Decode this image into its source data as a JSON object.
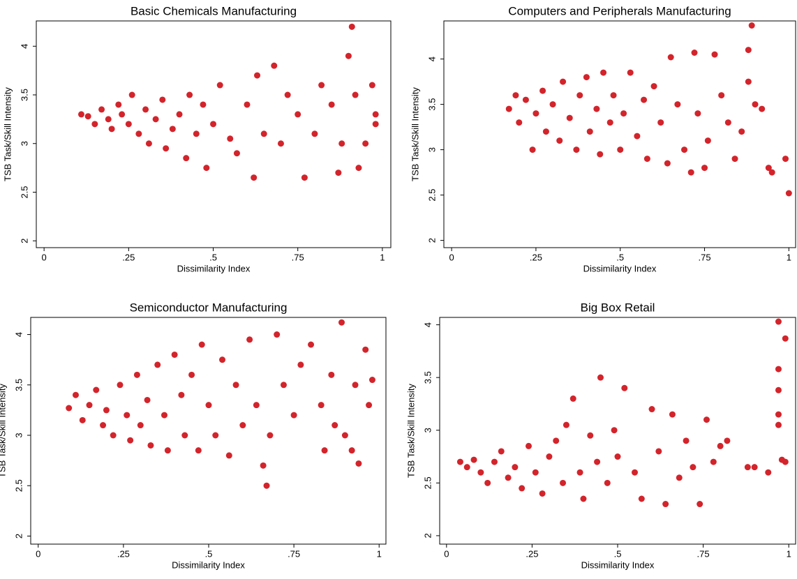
{
  "chart_data": [
    {
      "type": "scatter",
      "title": "Basic Chemicals Manufacturing",
      "x_label": "Dissimilarity Index",
      "y_label": "TSB Task/Skill Intensity",
      "color": "#d3242b",
      "xlim": [
        -0.023,
        1.025
      ],
      "ylim": [
        1.93,
        4.26
      ],
      "xticks": [
        0,
        {
          "value": 0.25,
          "label": ".25"
        },
        {
          "value": 0.5,
          "label": ".5"
        },
        {
          "value": 0.75,
          "label": ".75"
        },
        1
      ],
      "yticks": [
        2,
        2.5,
        3,
        3.5,
        4
      ],
      "x": [
        0.11,
        0.13,
        0.15,
        0.17,
        0.19,
        0.2,
        0.22,
        0.23,
        0.25,
        0.26,
        0.28,
        0.3,
        0.31,
        0.33,
        0.35,
        0.36,
        0.38,
        0.4,
        0.42,
        0.43,
        0.45,
        0.47,
        0.48,
        0.5,
        0.52,
        0.55,
        0.57,
        0.6,
        0.62,
        0.63,
        0.65,
        0.68,
        0.7,
        0.72,
        0.75,
        0.77,
        0.8,
        0.82,
        0.85,
        0.87,
        0.88,
        0.9,
        0.91,
        0.92,
        0.93,
        0.95,
        0.97,
        0.98,
        0.98
      ],
      "values": [
        3.3,
        3.28,
        3.2,
        3.35,
        3.25,
        3.15,
        3.4,
        3.3,
        3.2,
        3.5,
        3.1,
        3.35,
        3.0,
        3.25,
        3.45,
        2.95,
        3.15,
        3.3,
        2.85,
        3.5,
        3.1,
        3.4,
        2.75,
        3.2,
        3.6,
        3.05,
        2.9,
        3.4,
        2.65,
        3.7,
        3.1,
        3.8,
        3.0,
        3.5,
        3.3,
        2.65,
        3.1,
        3.6,
        3.4,
        2.7,
        3.0,
        3.9,
        4.2,
        3.5,
        2.75,
        3.0,
        3.6,
        3.3,
        3.2
      ]
    },
    {
      "type": "scatter",
      "title": "Computers and Peripherals Manufacturing",
      "x_label": "Dissimilarity Index",
      "y_label": "TSB Task/Skill Intensity",
      "color": "#d3242b",
      "xlim": [
        -0.023,
        1.02
      ],
      "ylim": [
        1.92,
        4.42
      ],
      "xticks": [
        0,
        {
          "value": 0.25,
          "label": ".25"
        },
        {
          "value": 0.5,
          "label": ".5"
        },
        {
          "value": 0.75,
          "label": ".75"
        },
        1
      ],
      "yticks": [
        2,
        2.5,
        3,
        3.5,
        4
      ],
      "x": [
        0.17,
        0.19,
        0.2,
        0.22,
        0.24,
        0.25,
        0.27,
        0.28,
        0.3,
        0.32,
        0.33,
        0.35,
        0.37,
        0.38,
        0.4,
        0.41,
        0.43,
        0.44,
        0.45,
        0.47,
        0.48,
        0.5,
        0.51,
        0.53,
        0.55,
        0.57,
        0.58,
        0.6,
        0.62,
        0.64,
        0.65,
        0.67,
        0.69,
        0.71,
        0.72,
        0.73,
        0.75,
        0.76,
        0.78,
        0.8,
        0.82,
        0.84,
        0.86,
        0.88,
        0.88,
        0.89,
        0.9,
        0.92,
        0.94,
        0.95,
        0.99,
        1.0
      ],
      "values": [
        3.45,
        3.6,
        3.3,
        3.55,
        3.0,
        3.4,
        3.65,
        3.2,
        3.5,
        3.1,
        3.75,
        3.35,
        3.0,
        3.6,
        3.8,
        3.2,
        3.45,
        2.95,
        3.85,
        3.3,
        3.6,
        3.0,
        3.4,
        3.85,
        3.15,
        3.55,
        2.9,
        3.7,
        3.3,
        2.85,
        4.02,
        3.5,
        3.0,
        2.75,
        4.07,
        3.4,
        2.8,
        3.1,
        4.05,
        3.6,
        3.3,
        2.9,
        3.2,
        4.1,
        3.75,
        4.37,
        3.5,
        3.45,
        2.8,
        2.75,
        2.9,
        2.52
      ]
    },
    {
      "type": "scatter",
      "title": "Semiconductor Manufacturing",
      "x_label": "Dissimilarity Index",
      "y_label": "TSB Task/Skill Intensity",
      "color": "#d3242b",
      "xlim": [
        -0.022,
        1.02
      ],
      "ylim": [
        1.92,
        4.17
      ],
      "xticks": [
        0,
        {
          "value": 0.25,
          "label": ".25"
        },
        {
          "value": 0.5,
          "label": ".5"
        },
        {
          "value": 0.75,
          "label": ".75"
        },
        1
      ],
      "yticks": [
        2,
        2.5,
        3,
        3.5,
        4
      ],
      "x": [
        0.09,
        0.11,
        0.13,
        0.15,
        0.17,
        0.19,
        0.2,
        0.22,
        0.24,
        0.26,
        0.27,
        0.29,
        0.3,
        0.32,
        0.33,
        0.35,
        0.37,
        0.38,
        0.4,
        0.42,
        0.43,
        0.45,
        0.47,
        0.48,
        0.5,
        0.52,
        0.54,
        0.56,
        0.58,
        0.6,
        0.62,
        0.64,
        0.66,
        0.67,
        0.68,
        0.7,
        0.72,
        0.75,
        0.77,
        0.8,
        0.83,
        0.84,
        0.86,
        0.87,
        0.89,
        0.9,
        0.92,
        0.93,
        0.94,
        0.96,
        0.97,
        0.98
      ],
      "values": [
        3.27,
        3.4,
        3.15,
        3.3,
        3.45,
        3.1,
        3.25,
        3.0,
        3.5,
        3.2,
        2.95,
        3.6,
        3.1,
        3.35,
        2.9,
        3.7,
        3.2,
        2.85,
        3.8,
        3.4,
        3.0,
        3.6,
        2.85,
        3.9,
        3.3,
        3.0,
        3.75,
        2.8,
        3.5,
        3.1,
        3.95,
        3.3,
        2.7,
        2.5,
        3.0,
        4.0,
        3.5,
        3.2,
        3.7,
        3.9,
        3.3,
        2.85,
        3.6,
        3.1,
        4.12,
        3.0,
        2.85,
        3.5,
        2.72,
        3.85,
        3.3,
        3.55
      ]
    },
    {
      "type": "scatter",
      "title": "Big Box Retail",
      "x_label": "Dissimilarity Index",
      "y_label": "TSB Task/Skill Intensity",
      "color": "#d3242b",
      "xlim": [
        -0.02,
        1.02
      ],
      "ylim": [
        1.92,
        4.07
      ],
      "xticks": [
        0,
        {
          "value": 0.25,
          "label": ".25"
        },
        {
          "value": 0.5,
          "label": ".5"
        },
        {
          "value": 0.75,
          "label": ".75"
        },
        1
      ],
      "yticks": [
        2,
        2.5,
        3,
        3.5,
        4
      ],
      "x": [
        0.04,
        0.06,
        0.08,
        0.1,
        0.12,
        0.14,
        0.16,
        0.18,
        0.2,
        0.22,
        0.24,
        0.26,
        0.28,
        0.3,
        0.32,
        0.34,
        0.35,
        0.37,
        0.39,
        0.4,
        0.42,
        0.44,
        0.45,
        0.47,
        0.49,
        0.5,
        0.52,
        0.55,
        0.57,
        0.6,
        0.62,
        0.64,
        0.66,
        0.68,
        0.7,
        0.72,
        0.74,
        0.76,
        0.78,
        0.8,
        0.82,
        0.88,
        0.9,
        0.94,
        0.97,
        0.97,
        0.97,
        0.97,
        0.97,
        0.98,
        0.99,
        0.99
      ],
      "values": [
        2.7,
        2.65,
        2.72,
        2.6,
        2.5,
        2.7,
        2.8,
        2.55,
        2.65,
        2.45,
        2.85,
        2.6,
        2.4,
        2.75,
        2.9,
        2.5,
        3.05,
        3.3,
        2.6,
        2.35,
        2.95,
        2.7,
        3.5,
        2.5,
        3.0,
        2.75,
        3.4,
        2.6,
        2.35,
        3.2,
        2.8,
        2.3,
        3.15,
        2.55,
        2.9,
        2.65,
        2.3,
        3.1,
        2.7,
        2.85,
        2.9,
        2.65,
        2.65,
        2.6,
        4.03,
        3.58,
        3.38,
        3.15,
        3.05,
        2.72,
        3.87,
        2.7
      ]
    }
  ]
}
